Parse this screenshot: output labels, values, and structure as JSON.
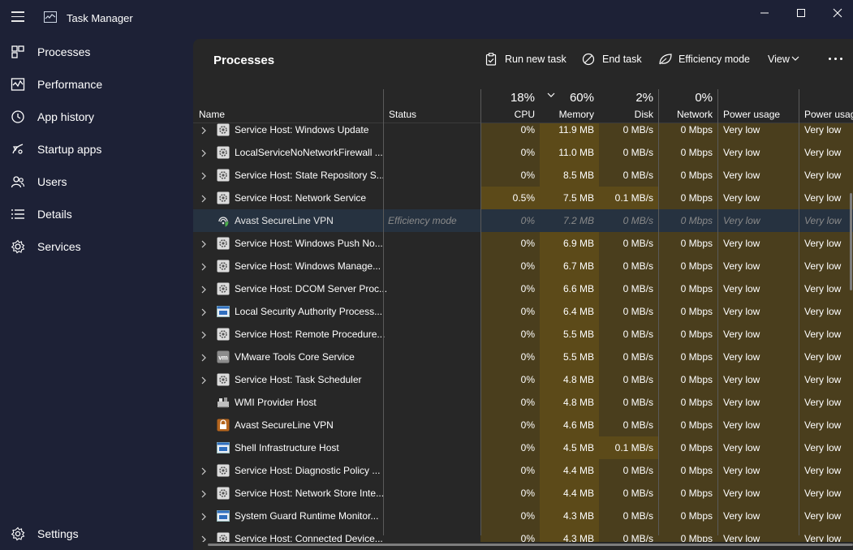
{
  "app": {
    "title": "Task Manager"
  },
  "window": {
    "minimize_icon": "minimize-icon",
    "maximize_icon": "maximize-icon",
    "close_icon": "close-icon"
  },
  "sidebar": {
    "items": [
      {
        "label": "Processes",
        "icon": "processes-icon"
      },
      {
        "label": "Performance",
        "icon": "performance-icon"
      },
      {
        "label": "App history",
        "icon": "app-history-icon"
      },
      {
        "label": "Startup apps",
        "icon": "startup-apps-icon"
      },
      {
        "label": "Users",
        "icon": "users-icon"
      },
      {
        "label": "Details",
        "icon": "details-icon"
      },
      {
        "label": "Services",
        "icon": "services-icon"
      }
    ],
    "settings": {
      "label": "Settings",
      "icon": "gear-icon"
    }
  },
  "page": {
    "title": "Processes"
  },
  "toolbar": {
    "run_new_task": "Run new task",
    "end_task": "End task",
    "efficiency_mode": "Efficiency mode",
    "view": "View"
  },
  "columns": {
    "name": "Name",
    "status": "Status",
    "cpu": {
      "label": "CPU",
      "percent": "18%"
    },
    "memory": {
      "label": "Memory",
      "percent": "60%"
    },
    "disk": {
      "label": "Disk",
      "percent": "2%"
    },
    "network": {
      "label": "Network",
      "percent": "0%"
    },
    "power": "Power usage",
    "power_trend": "Power usag"
  },
  "colors": {
    "heat_low": "#4a3e1d",
    "heat_mid": "#5c4a19",
    "heat_high": "#6b5314",
    "efficiency_row": "#263240",
    "panel": "#272727",
    "background": "#1d2136"
  },
  "processes": [
    {
      "name": "Service Host: Windows Update",
      "status": "",
      "cpu": "0%",
      "memory": "11.9 MB",
      "disk": "0 MB/s",
      "network": "0 Mbps",
      "power": "Very low",
      "power_trend": "Very low",
      "expandable": true,
      "icon": "gear-service-icon"
    },
    {
      "name": "LocalServiceNoNetworkFirewall ...",
      "status": "",
      "cpu": "0%",
      "memory": "11.0 MB",
      "disk": "0 MB/s",
      "network": "0 Mbps",
      "power": "Very low",
      "power_trend": "Very low",
      "expandable": true,
      "icon": "gear-service-icon"
    },
    {
      "name": "Service Host: State Repository S...",
      "status": "",
      "cpu": "0%",
      "memory": "8.5 MB",
      "disk": "0 MB/s",
      "network": "0 Mbps",
      "power": "Very low",
      "power_trend": "Very low",
      "expandable": true,
      "icon": "gear-service-icon"
    },
    {
      "name": "Service Host: Network Service",
      "status": "",
      "cpu": "0.5%",
      "memory": "7.5 MB",
      "disk": "0.1 MB/s",
      "network": "0 Mbps",
      "power": "Very low",
      "power_trend": "Very low",
      "expandable": true,
      "icon": "gear-service-icon"
    },
    {
      "name": "Avast SecureLine VPN",
      "status": "Efficiency mode",
      "cpu": "0%",
      "memory": "7.2 MB",
      "disk": "0 MB/s",
      "network": "0 Mbps",
      "power": "Very low",
      "power_trend": "Very low",
      "expandable": false,
      "icon": "vpn-shield-icon",
      "efficiency": true
    },
    {
      "name": "Service Host: Windows Push No...",
      "status": "",
      "cpu": "0%",
      "memory": "6.9 MB",
      "disk": "0 MB/s",
      "network": "0 Mbps",
      "power": "Very low",
      "power_trend": "Very low",
      "expandable": true,
      "icon": "gear-service-icon"
    },
    {
      "name": "Service Host: Windows Manage...",
      "status": "",
      "cpu": "0%",
      "memory": "6.7 MB",
      "disk": "0 MB/s",
      "network": "0 Mbps",
      "power": "Very low",
      "power_trend": "Very low",
      "expandable": true,
      "icon": "gear-service-icon"
    },
    {
      "name": "Service Host: DCOM Server Proc...",
      "status": "",
      "cpu": "0%",
      "memory": "6.6 MB",
      "disk": "0 MB/s",
      "network": "0 Mbps",
      "power": "Very low",
      "power_trend": "Very low",
      "expandable": true,
      "icon": "gear-service-icon"
    },
    {
      "name": "Local Security Authority Process...",
      "status": "",
      "cpu": "0%",
      "memory": "6.4 MB",
      "disk": "0 MB/s",
      "network": "0 Mbps",
      "power": "Very low",
      "power_trend": "Very low",
      "expandable": true,
      "icon": "window-app-icon"
    },
    {
      "name": "Service Host: Remote Procedure...",
      "status": "",
      "cpu": "0%",
      "memory": "5.5 MB",
      "disk": "0 MB/s",
      "network": "0 Mbps",
      "power": "Very low",
      "power_trend": "Very low",
      "expandable": true,
      "icon": "gear-service-icon"
    },
    {
      "name": "VMware Tools Core Service",
      "status": "",
      "cpu": "0%",
      "memory": "5.5 MB",
      "disk": "0 MB/s",
      "network": "0 Mbps",
      "power": "Very low",
      "power_trend": "Very low",
      "expandable": true,
      "icon": "vmware-icon"
    },
    {
      "name": "Service Host: Task Scheduler",
      "status": "",
      "cpu": "0%",
      "memory": "4.8 MB",
      "disk": "0 MB/s",
      "network": "0 Mbps",
      "power": "Very low",
      "power_trend": "Very low",
      "expandable": true,
      "icon": "gear-service-icon"
    },
    {
      "name": "WMI Provider Host",
      "status": "",
      "cpu": "0%",
      "memory": "4.8 MB",
      "disk": "0 MB/s",
      "network": "0 Mbps",
      "power": "Very low",
      "power_trend": "Very low",
      "expandable": false,
      "icon": "wmi-icon"
    },
    {
      "name": "Avast SecureLine VPN",
      "status": "",
      "cpu": "0%",
      "memory": "4.6 MB",
      "disk": "0 MB/s",
      "network": "0 Mbps",
      "power": "Very low",
      "power_trend": "Very low",
      "expandable": false,
      "icon": "vpn-lock-icon"
    },
    {
      "name": "Shell Infrastructure Host",
      "status": "",
      "cpu": "0%",
      "memory": "4.5 MB",
      "disk": "0.1 MB/s",
      "network": "0 Mbps",
      "power": "Very low",
      "power_trend": "Very low",
      "expandable": false,
      "icon": "window-app-icon"
    },
    {
      "name": "Service Host: Diagnostic Policy ...",
      "status": "",
      "cpu": "0%",
      "memory": "4.4 MB",
      "disk": "0 MB/s",
      "network": "0 Mbps",
      "power": "Very low",
      "power_trend": "Very low",
      "expandable": true,
      "icon": "gear-service-icon"
    },
    {
      "name": "Service Host: Network Store Inte...",
      "status": "",
      "cpu": "0%",
      "memory": "4.4 MB",
      "disk": "0 MB/s",
      "network": "0 Mbps",
      "power": "Very low",
      "power_trend": "Very low",
      "expandable": true,
      "icon": "gear-service-icon"
    },
    {
      "name": "System Guard Runtime Monitor...",
      "status": "",
      "cpu": "0%",
      "memory": "4.3 MB",
      "disk": "0 MB/s",
      "network": "0 Mbps",
      "power": "Very low",
      "power_trend": "Very low",
      "expandable": true,
      "icon": "window-app-icon"
    },
    {
      "name": "Service Host: Connected Device...",
      "status": "",
      "cpu": "0%",
      "memory": "4.3 MB",
      "disk": "0 MB/s",
      "network": "0 Mbps",
      "power": "Very low",
      "power_trend": "Very low",
      "expandable": true,
      "icon": "gear-service-icon"
    }
  ]
}
